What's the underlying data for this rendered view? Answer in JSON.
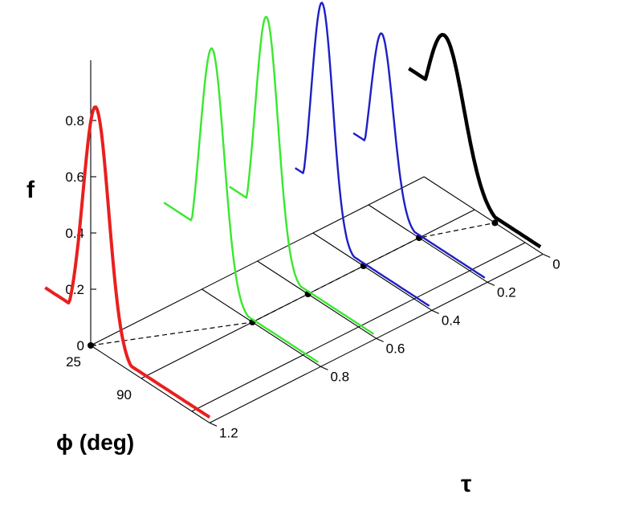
{
  "chart_data": {
    "type": "line",
    "subtype": "3d-waterfall",
    "z_axis": {
      "label": "f",
      "ticks": [
        "0",
        "0.2",
        "0.4",
        "0.6",
        "0.8"
      ]
    },
    "phi_axis": {
      "label": "ϕ (deg)",
      "ticks": [
        "25",
        "90"
      ]
    },
    "tau_axis": {
      "label": "τ",
      "ticks": [
        "0",
        "0.2",
        "0.4",
        "0.6",
        "0.8",
        "1.2"
      ]
    },
    "series": [
      {
        "tau": 1.2,
        "color": "#e8201e",
        "peak_f": 0.86
      },
      {
        "tau": 0.8,
        "color": "#39e82e",
        "peak_f": 0.88
      },
      {
        "tau": 0.6,
        "color": "#39e82e",
        "peak_f": 0.89
      },
      {
        "tau": 0.4,
        "color": "#1d1fc4",
        "peak_f": 0.84
      },
      {
        "tau": 0.2,
        "color": "#1d1fc4",
        "peak_f": 0.64
      },
      {
        "tau": 0.0,
        "color": "#000000",
        "peak_f": 0.55
      }
    ],
    "peak_locus": {
      "style": "dashed",
      "marker": "dot"
    },
    "grid": true
  }
}
